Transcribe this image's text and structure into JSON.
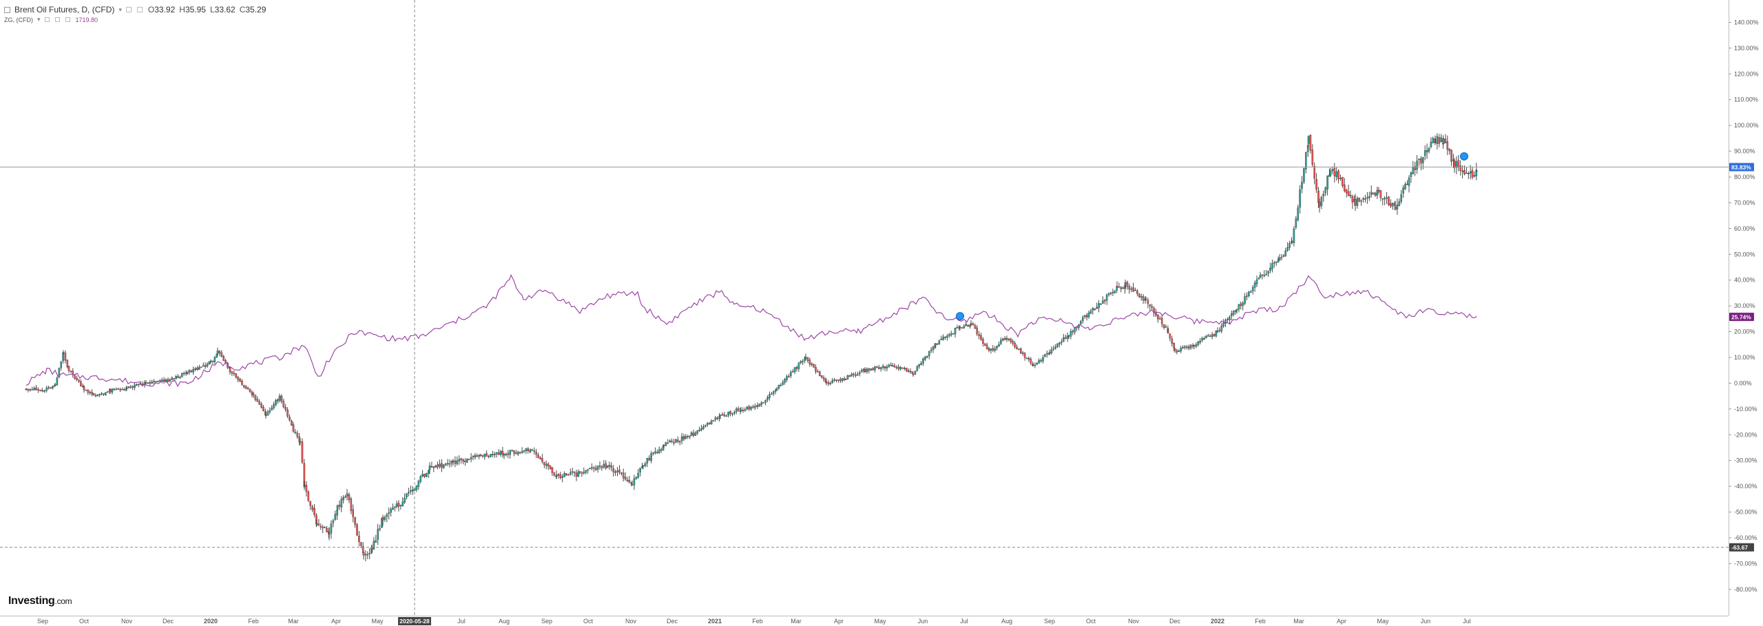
{
  "legend": {
    "instrument": "Brent Oil Futures, D, (CFD)",
    "open_label": "O",
    "open": "33.92",
    "high_label": "H",
    "high": "35.95",
    "low_label": "L",
    "low": "33.62",
    "close_label": "C",
    "close": "35.29",
    "compare_symbol": "ZG, (CFD)",
    "compare_value": "1719.80"
  },
  "branding": {
    "logo_main": "Investing",
    "logo_suffix": ".com"
  },
  "colors": {
    "up": "#26a69a",
    "down": "#ef5350",
    "candle_edge": "#333333",
    "compare_line": "#9c46a6",
    "axis_text": "#555555",
    "price_tag": "#2f6fd8",
    "compare_tag": "#7b1f83",
    "crosshair_tag": "#444444"
  },
  "chart_data": {
    "type": "candlestick",
    "unit": "percent change",
    "y_ticks": [
      "140.00%",
      "130.00%",
      "120.00%",
      "110.00%",
      "100.00%",
      "90.00%",
      "80.00%",
      "70.00%",
      "60.00%",
      "50.00%",
      "40.00%",
      "30.00%",
      "20.00%",
      "10.00%",
      "0.00%",
      "-10.00%",
      "-20.00%",
      "-30.00%",
      "-40.00%",
      "-50.00%",
      "-60.00%",
      "-70.00%",
      "-80.00%"
    ],
    "y_range": [
      -87,
      146
    ],
    "x_labels": [
      "Sep",
      "Oct",
      "Nov",
      "Dec",
      "2020",
      "Feb",
      "Mar",
      "Apr",
      "May",
      "2020-05-28",
      "Jul",
      "Aug",
      "Sep",
      "Oct",
      "Nov",
      "Dec",
      "2021",
      "Feb",
      "Mar",
      "Apr",
      "May",
      "Jun",
      "Jul",
      "Aug",
      "Sep",
      "Oct",
      "Nov",
      "Dec",
      "2022",
      "Feb",
      "Mar",
      "Apr",
      "May",
      "Jun",
      "Jul"
    ],
    "crosshair_x_label": "2020-05-28",
    "crosshair_y_label": "-63.67",
    "price_tag": "83.83%",
    "compare_tag": "25.74%",
    "brent_path": [
      [
        "2019-08-20",
        -2
      ],
      [
        "2019-09-01",
        -3
      ],
      [
        "2019-09-10",
        -1
      ],
      [
        "2019-09-16",
        12
      ],
      [
        "2019-09-20",
        5
      ],
      [
        "2019-10-01",
        -2
      ],
      [
        "2019-10-08",
        -5
      ],
      [
        "2019-10-20",
        -3
      ],
      [
        "2019-11-01",
        -2
      ],
      [
        "2019-11-15",
        0
      ],
      [
        "2019-12-01",
        1
      ],
      [
        "2019-12-15",
        4
      ],
      [
        "2020-01-01",
        8
      ],
      [
        "2020-01-06",
        12
      ],
      [
        "2020-01-15",
        5
      ],
      [
        "2020-02-01",
        -5
      ],
      [
        "2020-02-10",
        -12
      ],
      [
        "2020-02-20",
        -5
      ],
      [
        "2020-03-01",
        -18
      ],
      [
        "2020-03-06",
        -23
      ],
      [
        "2020-03-09",
        -40
      ],
      [
        "2020-03-18",
        -55
      ],
      [
        "2020-03-27",
        -58
      ],
      [
        "2020-04-02",
        -48
      ],
      [
        "2020-04-09",
        -43
      ],
      [
        "2020-04-21",
        -68
      ],
      [
        "2020-04-27",
        -64
      ],
      [
        "2020-05-05",
        -52
      ],
      [
        "2020-05-15",
        -48
      ],
      [
        "2020-05-28",
        -40
      ],
      [
        "2020-06-08",
        -33
      ],
      [
        "2020-06-25",
        -31
      ],
      [
        "2020-07-15",
        -28
      ],
      [
        "2020-08-01",
        -27
      ],
      [
        "2020-08-20",
        -26
      ],
      [
        "2020-09-08",
        -36
      ],
      [
        "2020-09-25",
        -35
      ],
      [
        "2020-10-15",
        -32
      ],
      [
        "2020-11-02",
        -39
      ],
      [
        "2020-11-10",
        -31
      ],
      [
        "2020-11-25",
        -24
      ],
      [
        "2020-12-15",
        -20
      ],
      [
        "2021-01-05",
        -13
      ],
      [
        "2021-01-20",
        -10
      ],
      [
        "2021-02-01",
        -9
      ],
      [
        "2021-02-15",
        -2
      ],
      [
        "2021-03-08",
        10
      ],
      [
        "2021-03-23",
        0
      ],
      [
        "2021-04-06",
        2
      ],
      [
        "2021-04-20",
        5
      ],
      [
        "2021-05-10",
        7
      ],
      [
        "2021-05-25",
        4
      ],
      [
        "2021-06-10",
        15
      ],
      [
        "2021-06-28",
        22
      ],
      [
        "2021-07-06",
        23
      ],
      [
        "2021-07-19",
        12
      ],
      [
        "2021-08-01",
        18
      ],
      [
        "2021-08-20",
        7
      ],
      [
        "2021-09-01",
        12
      ],
      [
        "2021-09-15",
        19
      ],
      [
        "2021-10-01",
        28
      ],
      [
        "2021-10-20",
        37
      ],
      [
        "2021-10-26",
        38
      ],
      [
        "2021-11-10",
        32
      ],
      [
        "2021-11-26",
        20
      ],
      [
        "2021-12-01",
        12
      ],
      [
        "2021-12-15",
        15
      ],
      [
        "2022-01-01",
        20
      ],
      [
        "2022-01-15",
        29
      ],
      [
        "2022-02-01",
        41
      ],
      [
        "2022-02-15",
        48
      ],
      [
        "2022-02-24",
        55
      ],
      [
        "2022-03-08",
        95
      ],
      [
        "2022-03-16",
        68
      ],
      [
        "2022-03-24",
        84
      ],
      [
        "2022-04-11",
        70
      ],
      [
        "2022-04-28",
        74
      ],
      [
        "2022-05-10",
        68
      ],
      [
        "2022-05-20",
        80
      ],
      [
        "2022-06-08",
        95
      ],
      [
        "2022-06-14",
        93
      ],
      [
        "2022-06-22",
        85
      ],
      [
        "2022-07-05",
        80
      ],
      [
        "2022-07-08",
        83.83
      ]
    ],
    "gold_path": [
      [
        "2019-08-20",
        0
      ],
      [
        "2019-09-04",
        5
      ],
      [
        "2019-09-16",
        3
      ],
      [
        "2019-10-15",
        2
      ],
      [
        "2019-11-12",
        0
      ],
      [
        "2019-12-15",
        0
      ],
      [
        "2020-01-08",
        8
      ],
      [
        "2020-01-20",
        6
      ],
      [
        "2020-02-20",
        10
      ],
      [
        "2020-03-09",
        15
      ],
      [
        "2020-03-19",
        2
      ],
      [
        "2020-03-25",
        8
      ],
      [
        "2020-04-14",
        20
      ],
      [
        "2020-05-15",
        17
      ],
      [
        "2020-06-01",
        18
      ],
      [
        "2020-07-01",
        25
      ],
      [
        "2020-07-20",
        30
      ],
      [
        "2020-08-06",
        41
      ],
      [
        "2020-08-15",
        33
      ],
      [
        "2020-09-01",
        36
      ],
      [
        "2020-09-25",
        28
      ],
      [
        "2020-10-15",
        34
      ],
      [
        "2020-11-06",
        35
      ],
      [
        "2020-11-09",
        30
      ],
      [
        "2020-11-27",
        23
      ],
      [
        "2020-12-15",
        30
      ],
      [
        "2021-01-06",
        36
      ],
      [
        "2021-01-15",
        30
      ],
      [
        "2021-02-01",
        29
      ],
      [
        "2021-02-15",
        25
      ],
      [
        "2021-03-08",
        17
      ],
      [
        "2021-03-25",
        20
      ],
      [
        "2021-04-15",
        20
      ],
      [
        "2021-05-15",
        28
      ],
      [
        "2021-06-01",
        33
      ],
      [
        "2021-06-17",
        25
      ],
      [
        "2021-07-01",
        24
      ],
      [
        "2021-07-15",
        28
      ],
      [
        "2021-08-09",
        19
      ],
      [
        "2021-08-20",
        24
      ],
      [
        "2021-09-03",
        25
      ],
      [
        "2021-09-30",
        21
      ],
      [
        "2021-10-15",
        24
      ],
      [
        "2021-11-16",
        28
      ],
      [
        "2021-12-15",
        24
      ],
      [
        "2022-01-15",
        24
      ],
      [
        "2022-01-25",
        28
      ],
      [
        "2022-02-15",
        29
      ],
      [
        "2022-03-08",
        41
      ],
      [
        "2022-03-20",
        34
      ],
      [
        "2022-04-18",
        36
      ],
      [
        "2022-05-16",
        26
      ],
      [
        "2022-06-01",
        28
      ],
      [
        "2022-06-15",
        27
      ],
      [
        "2022-07-08",
        25.74
      ]
    ]
  }
}
